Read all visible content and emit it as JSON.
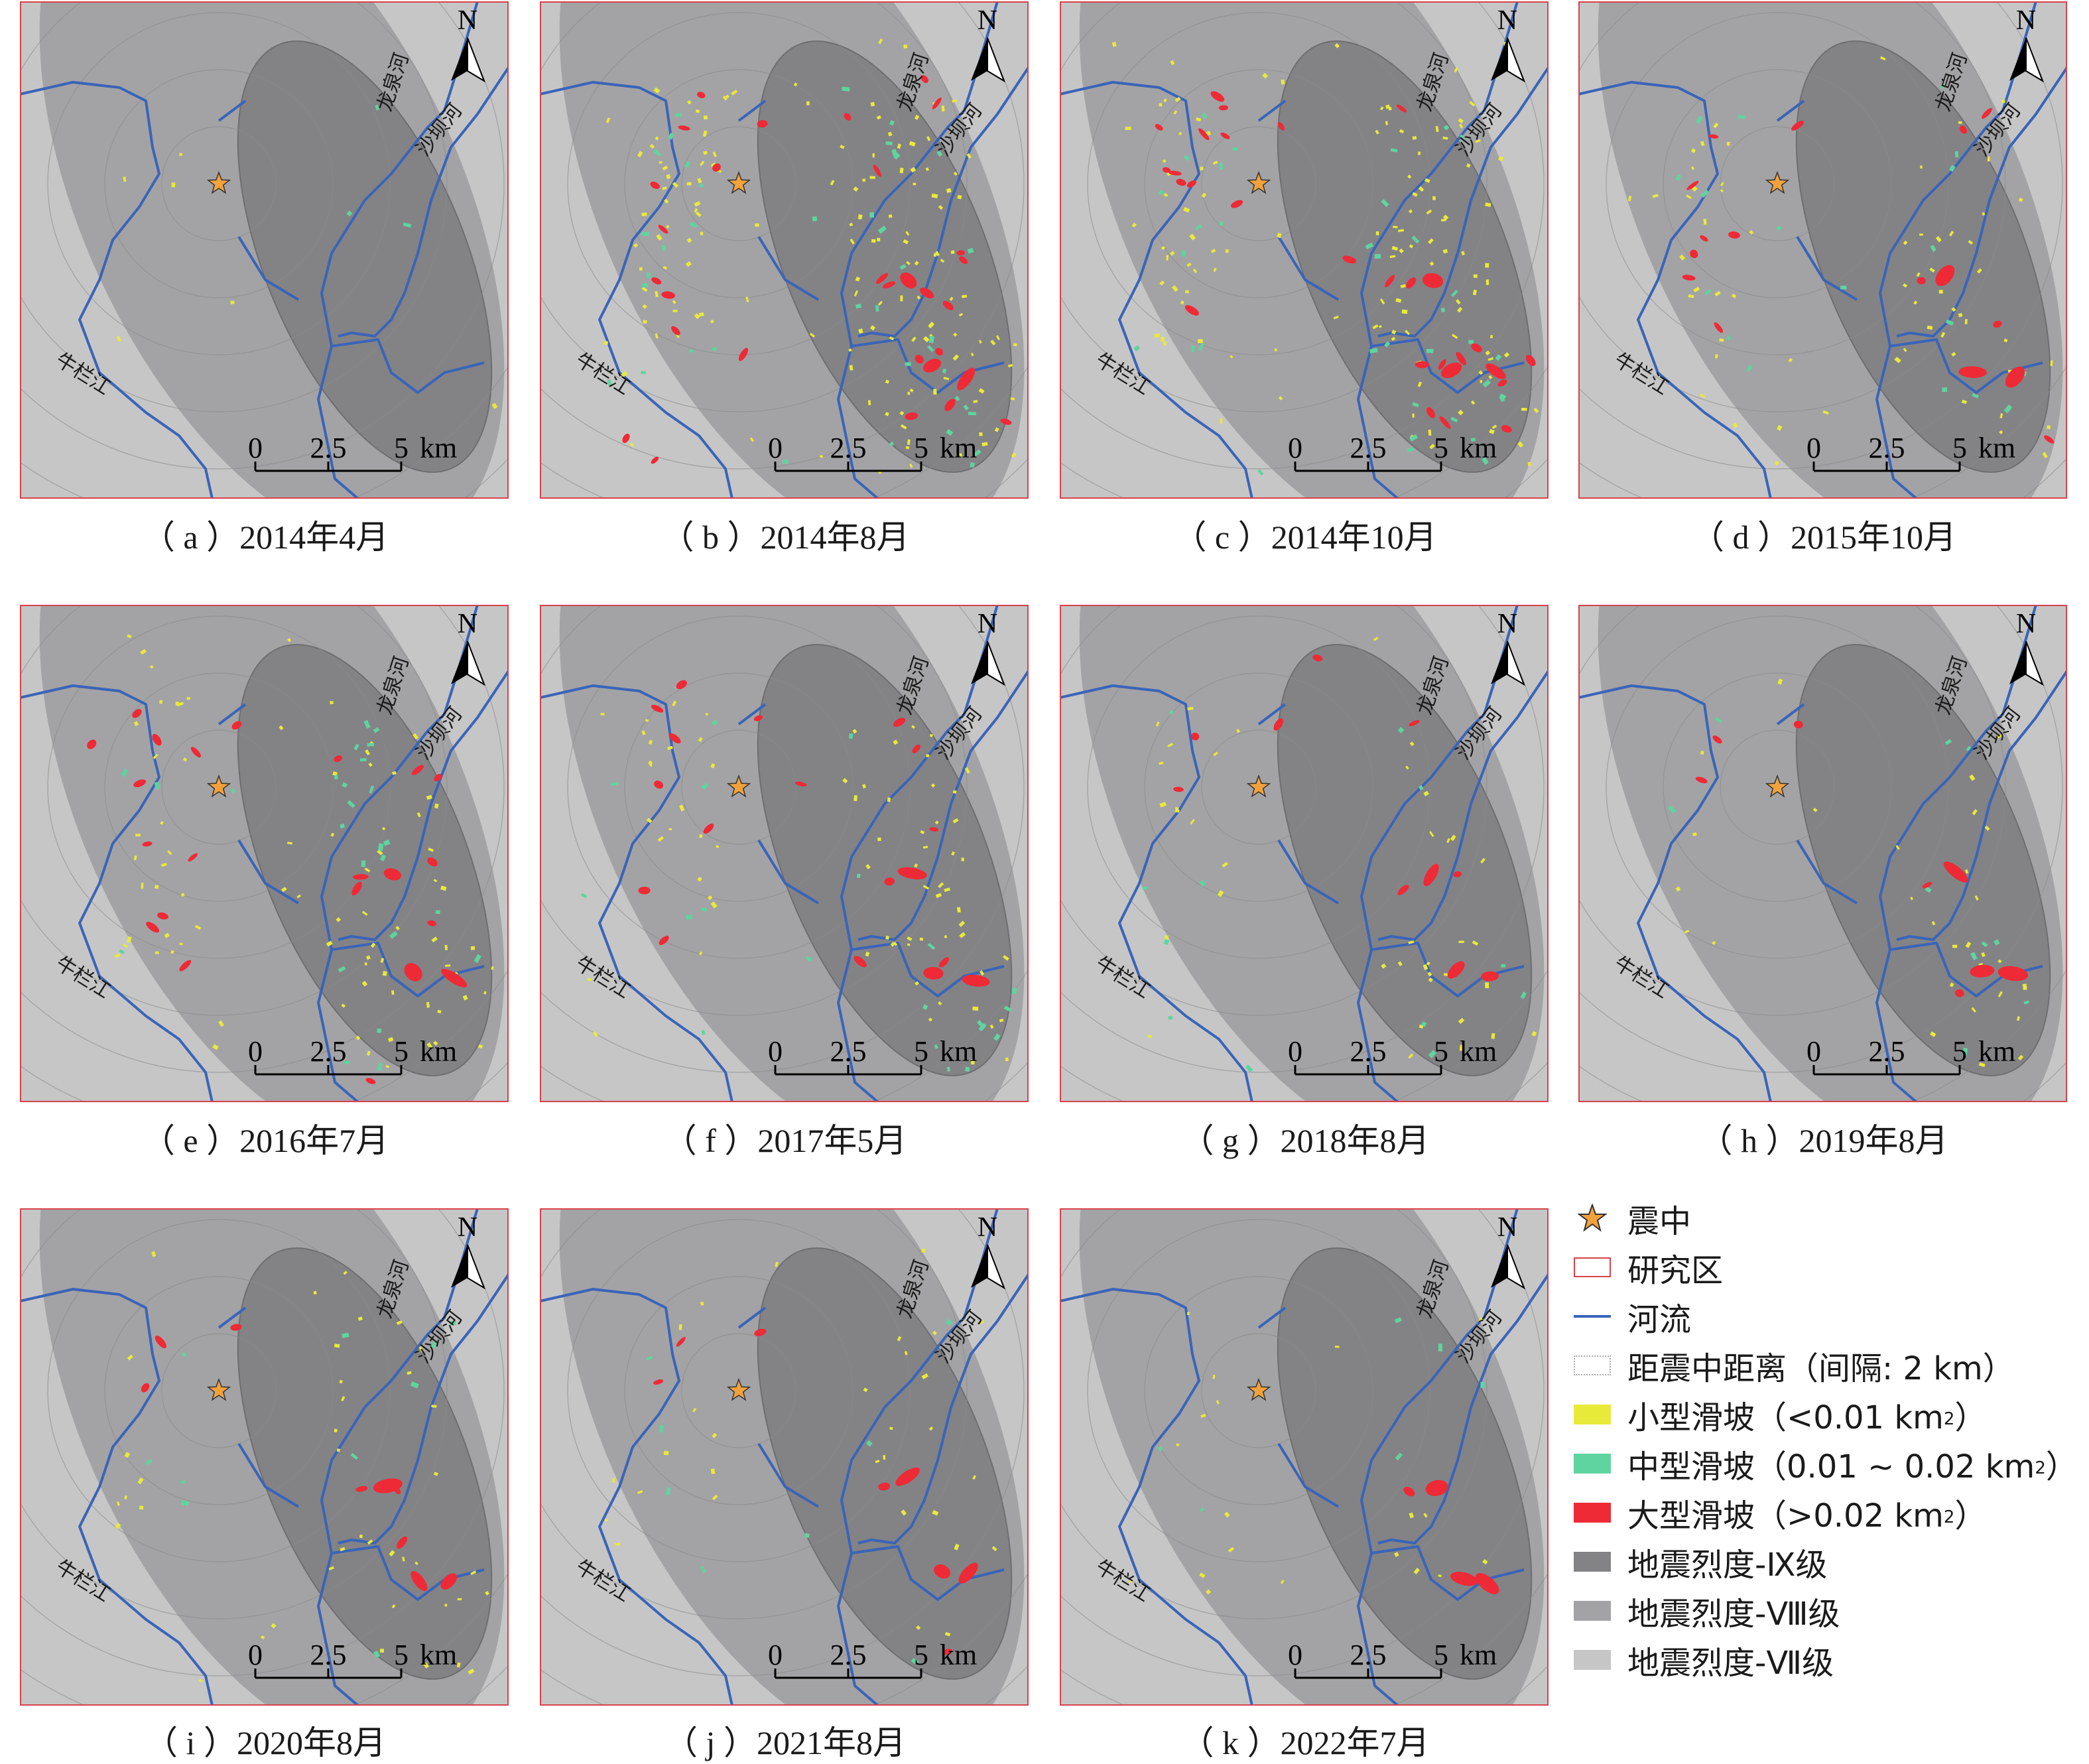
{
  "panels": [
    {
      "id": "a",
      "caption": "（ a ）2014年4月",
      "small": 6,
      "medium": 3,
      "large": 0
    },
    {
      "id": "b",
      "caption": "（ b ）2014年8月",
      "small": 150,
      "medium": 40,
      "large": 30
    },
    {
      "id": "c",
      "caption": "（ c ）2014年10月",
      "small": 120,
      "medium": 35,
      "large": 28
    },
    {
      "id": "d",
      "caption": "（ d ）2015年10月",
      "small": 60,
      "medium": 18,
      "large": 16
    },
    {
      "id": "e",
      "caption": "（ e ）2016年7月",
      "small": 80,
      "medium": 25,
      "large": 22
    },
    {
      "id": "f",
      "caption": "（ f ）2017年5月",
      "small": 70,
      "medium": 20,
      "large": 18
    },
    {
      "id": "g",
      "caption": "（ g ）2018年8月",
      "small": 40,
      "medium": 12,
      "large": 10
    },
    {
      "id": "h",
      "caption": "（ h ）2019年8月",
      "small": 30,
      "medium": 10,
      "large": 8
    },
    {
      "id": "i",
      "caption": "（ i ）2020年8月",
      "small": 40,
      "medium": 10,
      "large": 9
    },
    {
      "id": "j",
      "caption": "（ j ）2021年8月",
      "small": 30,
      "medium": 8,
      "large": 8
    },
    {
      "id": "k",
      "caption": "（ k ）2022年7月",
      "small": 20,
      "medium": 6,
      "large": 4
    }
  ],
  "map_labels": {
    "north": "N",
    "river_longquan": "龙泉河",
    "river_shaba": "沙坝河",
    "river_niulan": "牛栏江",
    "scale_0": "0",
    "scale_mid": "2.5",
    "scale_end": "5",
    "scale_unit": "km"
  },
  "legend": {
    "items": [
      {
        "label": "震中",
        "sup": "",
        "tail": ""
      },
      {
        "label": "研究区",
        "sup": "",
        "tail": ""
      },
      {
        "label": "河流",
        "sup": "",
        "tail": ""
      },
      {
        "label": "距震中距离（间隔: 2 km）",
        "sup": "",
        "tail": ""
      },
      {
        "label": "小型滑坡（<0.01 km",
        "sup": "2",
        "tail": "）"
      },
      {
        "label": "中型滑坡（0.01 ~ 0.02 km",
        "sup": "2",
        "tail": "）"
      },
      {
        "label": "大型滑坡（>0.02 km",
        "sup": "2",
        "tail": "）"
      },
      {
        "label": "地震烈度-Ⅸ级",
        "sup": "",
        "tail": ""
      },
      {
        "label": "地震烈度-Ⅷ级",
        "sup": "",
        "tail": ""
      },
      {
        "label": "地震烈度-Ⅶ级",
        "sup": "",
        "tail": ""
      }
    ]
  },
  "colors": {
    "intensity_vii": "#c6c6c6",
    "intensity_viii": "#a3a3a5",
    "intensity_ix": "#838386",
    "study_area_border": "#d8424c",
    "river": "#3a64b8",
    "distance_ring": "#8a8a8a",
    "epicenter": "#f1a23c",
    "landslide_small": "#e8ea3a",
    "landslide_medium": "#5fd4a0",
    "landslide_large": "#ee2a36"
  }
}
